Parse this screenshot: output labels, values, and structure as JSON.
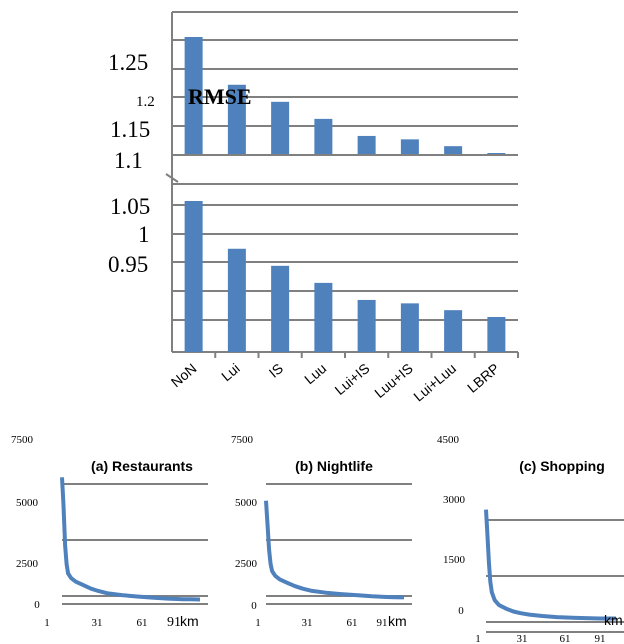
{
  "chart_data": [
    {
      "type": "bar",
      "categories": [
        "NoN",
        "Lui",
        "IS",
        "Luu",
        "Lui+IS",
        "Luu+IS",
        "Lui+Luu",
        "LBRP"
      ],
      "values": [
        1.3,
        1.23,
        1.205,
        1.18,
        1.155,
        1.15,
        1.14,
        1.13
      ],
      "ylabel": "RMSE",
      "tick_labels": [
        "1.25",
        "1.2",
        "1.15",
        "1.1",
        "1.05",
        "1",
        "0.95"
      ],
      "color": "#4f81bd",
      "grid": true
    },
    {
      "type": "line",
      "title": "(a) Restaurants",
      "xlabel": "km",
      "x_tick_labels": [
        "1",
        "31",
        "61",
        "91"
      ],
      "y_tick_labels": [
        "7500",
        "5000",
        "2500",
        "0"
      ],
      "ylim": [
        0,
        7500
      ],
      "xlim": [
        1,
        91
      ],
      "x": [
        1,
        2,
        3,
        4,
        5,
        7,
        10,
        15,
        20,
        25,
        31,
        40,
        50,
        61,
        70,
        80,
        85,
        91
      ],
      "values": [
        5400,
        4200,
        2500,
        1700,
        1300,
        1100,
        950,
        800,
        650,
        550,
        450,
        380,
        320,
        270,
        230,
        200,
        200,
        190
      ],
      "color": "#4f81bd"
    },
    {
      "type": "line",
      "title": "(b) Nightlife",
      "xlabel": "km",
      "x_tick_labels": [
        "1",
        "31",
        "61",
        "91"
      ],
      "y_tick_labels": [
        "7500",
        "5000",
        "2500",
        "0"
      ],
      "ylim": [
        0,
        7500
      ],
      "xlim": [
        1,
        91
      ],
      "x": [
        1,
        2,
        3,
        4,
        5,
        7,
        10,
        15,
        20,
        25,
        31,
        40,
        50,
        61,
        70,
        80,
        85,
        91
      ],
      "values": [
        4400,
        3400,
        2300,
        1700,
        1400,
        1200,
        1050,
        900,
        760,
        650,
        560,
        480,
        420,
        370,
        330,
        300,
        290,
        280
      ],
      "color": "#4f81bd"
    },
    {
      "type": "line",
      "title": "(c) Shopping",
      "xlabel": "km",
      "x_tick_labels": [
        "1",
        "31",
        "61",
        "91"
      ],
      "y_tick_labels": [
        "4500",
        "3000",
        "1500",
        "0"
      ],
      "ylim": [
        0,
        4500
      ],
      "xlim": [
        1,
        91
      ],
      "x": [
        1,
        2,
        3,
        4,
        5,
        7,
        10,
        15,
        20,
        25,
        31,
        40,
        50,
        61,
        70,
        80,
        85,
        91
      ],
      "values": [
        3200,
        2500,
        1700,
        1150,
        850,
        620,
        480,
        380,
        300,
        250,
        210,
        170,
        140,
        120,
        110,
        100,
        100,
        100
      ],
      "color": "#4f81bd"
    }
  ]
}
